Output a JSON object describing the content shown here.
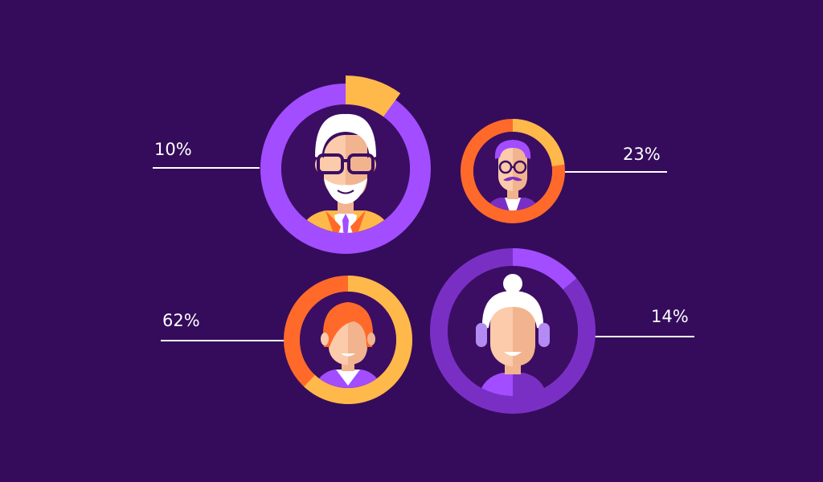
{
  "colors": {
    "background": "#350c5b",
    "inner_circle": "#3b0e63",
    "purple": "#a24dff",
    "purple_dark": "#7a2fc4",
    "purple_light": "#b48bf2",
    "orange": "#ff6a2b",
    "yellow": "#ffb84a",
    "skin": "#fbcbab",
    "skin_shadow": "#f2b48f",
    "white": "#ffffff",
    "line": "#ffffff"
  },
  "chart_data": {
    "type": "pie",
    "title": "",
    "series": [
      {
        "label": "10%",
        "value": 10,
        "ring_color": "#a24dff",
        "segment_color": "#ffb84a",
        "figure": "old-man-icon"
      },
      {
        "label": "23%",
        "value": 23,
        "ring_color": "#ff6a2b",
        "segment_color": "#ffb84a",
        "figure": "man-mustache-icon"
      },
      {
        "label": "62%",
        "value": 62,
        "ring_color": "#ff6a2b",
        "segment_color": "#ffb84a",
        "figure": "woman-icon"
      },
      {
        "label": "14%",
        "value": 14,
        "ring_color": "#7a2fc4",
        "segment_color": "#a24dff",
        "figure": "old-woman-icon"
      }
    ],
    "grid": false,
    "legend": "none"
  }
}
